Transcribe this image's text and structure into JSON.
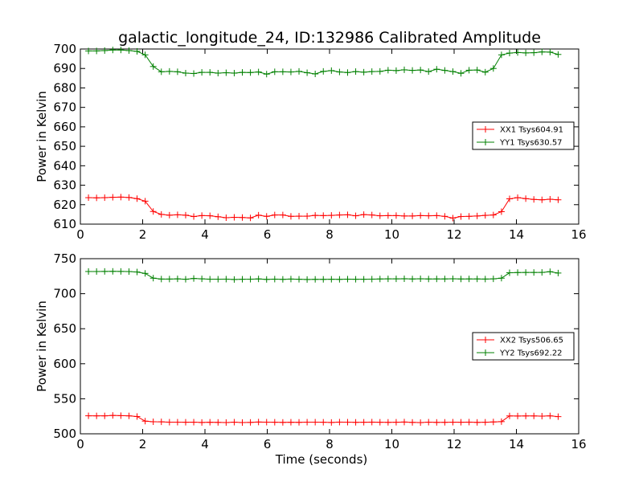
{
  "figure": {
    "title": "galactic_longitude_24, ID:132986 Calibrated Amplitude"
  },
  "colors": {
    "xx": "#ff0000",
    "yy": "#008000",
    "axes": "#000000",
    "background": "#ffffff"
  },
  "chart_data": [
    {
      "type": "line",
      "title": "galactic_longitude_24, ID:132986 Calibrated Amplitude",
      "xlabel": "",
      "ylabel": "Power in Kelvin",
      "xlim": [
        0,
        16
      ],
      "ylim": [
        610,
        700
      ],
      "xticks": [
        0,
        2,
        4,
        6,
        8,
        10,
        12,
        14,
        16
      ],
      "yticks": [
        610,
        620,
        630,
        640,
        650,
        660,
        670,
        680,
        690,
        700
      ],
      "xtick_labels": [
        "0",
        "2",
        "4",
        "6",
        "8",
        "10",
        "12",
        "14",
        "16"
      ],
      "ytick_labels": [
        "610",
        "620",
        "630",
        "640",
        "650",
        "660",
        "670",
        "680",
        "690",
        "700"
      ],
      "grid": false,
      "legend_position": "center-right",
      "marker": "plus",
      "x": [
        0.26,
        0.52,
        0.78,
        1.04,
        1.3,
        1.56,
        1.82,
        2.08,
        2.34,
        2.6,
        2.86,
        3.12,
        3.38,
        3.64,
        3.9,
        4.16,
        4.42,
        4.68,
        4.94,
        5.2,
        5.46,
        5.72,
        5.98,
        6.24,
        6.5,
        6.76,
        7.02,
        7.28,
        7.54,
        7.8,
        8.06,
        8.32,
        8.58,
        8.84,
        9.1,
        9.36,
        9.62,
        9.88,
        10.14,
        10.4,
        10.66,
        10.92,
        11.18,
        11.44,
        11.7,
        11.96,
        12.22,
        12.48,
        12.74,
        13.0,
        13.26,
        13.52,
        13.78,
        14.04,
        14.3,
        14.56,
        14.82,
        15.08,
        15.34
      ],
      "series": [
        {
          "name": "XX1 Tsys604.91",
          "color": "#ff0000",
          "values": [
            623.6,
            623.5,
            623.6,
            623.8,
            623.9,
            623.7,
            623.1,
            621.8,
            616.5,
            615.0,
            614.6,
            614.8,
            614.6,
            613.9,
            614.4,
            614.3,
            613.8,
            613.3,
            613.5,
            613.4,
            613.2,
            614.6,
            614.0,
            614.7,
            614.7,
            614.0,
            614.1,
            614.1,
            614.5,
            614.4,
            614.5,
            614.7,
            614.8,
            614.3,
            614.9,
            614.7,
            614.3,
            614.4,
            614.4,
            614.2,
            614.2,
            614.4,
            614.3,
            614.4,
            614.0,
            613.1,
            613.9,
            614.0,
            614.2,
            614.5,
            614.7,
            616.4,
            623.0,
            623.6,
            623.1,
            622.7,
            622.5,
            622.8,
            622.5
          ]
        },
        {
          "name": "YY1 Tsys630.57",
          "color": "#008000",
          "values": [
            699.0,
            699.0,
            699.2,
            699.5,
            699.5,
            699.2,
            698.8,
            697.0,
            691.0,
            688.3,
            688.5,
            688.3,
            687.6,
            687.4,
            688.0,
            688.0,
            687.6,
            687.8,
            687.6,
            688.0,
            687.9,
            688.2,
            687.1,
            688.3,
            688.3,
            688.2,
            688.5,
            687.8,
            687.2,
            688.5,
            688.9,
            688.2,
            687.9,
            688.4,
            688.1,
            688.4,
            688.5,
            689.1,
            688.9,
            689.3,
            689.0,
            689.2,
            688.4,
            689.6,
            689.0,
            688.4,
            687.5,
            689.1,
            689.2,
            688.1,
            690.0,
            697.0,
            697.9,
            698.2,
            698.0,
            698.1,
            698.5,
            698.4,
            697.2
          ]
        }
      ]
    },
    {
      "type": "line",
      "title": "",
      "xlabel": "Time (seconds)",
      "ylabel": "Power in Kelvin",
      "xlim": [
        0,
        16
      ],
      "ylim": [
        500,
        750
      ],
      "xticks": [
        0,
        2,
        4,
        6,
        8,
        10,
        12,
        14,
        16
      ],
      "yticks": [
        500,
        550,
        600,
        650,
        700,
        750
      ],
      "xtick_labels": [
        "0",
        "2",
        "4",
        "6",
        "8",
        "10",
        "12",
        "14",
        "16"
      ],
      "ytick_labels": [
        "500",
        "550",
        "600",
        "650",
        "700",
        "750"
      ],
      "grid": false,
      "legend_position": "center-right",
      "marker": "plus",
      "x": [
        0.26,
        0.52,
        0.78,
        1.04,
        1.3,
        1.56,
        1.82,
        2.08,
        2.34,
        2.6,
        2.86,
        3.12,
        3.38,
        3.64,
        3.9,
        4.16,
        4.42,
        4.68,
        4.94,
        5.2,
        5.46,
        5.72,
        5.98,
        6.24,
        6.5,
        6.76,
        7.02,
        7.28,
        7.54,
        7.8,
        8.06,
        8.32,
        8.58,
        8.84,
        9.1,
        9.36,
        9.62,
        9.88,
        10.14,
        10.4,
        10.66,
        10.92,
        11.18,
        11.44,
        11.7,
        11.96,
        12.22,
        12.48,
        12.74,
        13.0,
        13.26,
        13.52,
        13.78,
        14.04,
        14.3,
        14.56,
        14.82,
        15.08,
        15.34
      ],
      "series": [
        {
          "name": "XX2 Tsys506.65",
          "color": "#ff0000",
          "values": [
            525.7,
            525.6,
            525.6,
            526.2,
            525.9,
            525.6,
            524.7,
            518.1,
            517.2,
            517.1,
            516.6,
            516.6,
            516.5,
            516.6,
            516.2,
            516.5,
            516.3,
            516.1,
            516.6,
            516.1,
            516.3,
            516.8,
            516.6,
            516.5,
            516.3,
            516.5,
            516.4,
            516.6,
            516.6,
            516.5,
            516.2,
            516.7,
            516.6,
            516.4,
            516.5,
            516.7,
            516.5,
            516.4,
            516.5,
            516.8,
            516.3,
            516.0,
            516.6,
            516.3,
            516.4,
            516.6,
            516.5,
            516.7,
            516.3,
            516.5,
            516.9,
            517.4,
            525.5,
            525.4,
            525.5,
            525.5,
            525.2,
            525.6,
            524.5
          ]
        },
        {
          "name": "YY2 Tsys692.22",
          "color": "#008000",
          "values": [
            731.7,
            731.7,
            731.8,
            731.9,
            731.8,
            731.6,
            731.0,
            729.0,
            722.2,
            720.9,
            720.9,
            721.2,
            720.6,
            721.7,
            721.2,
            720.7,
            720.7,
            720.8,
            720.3,
            720.6,
            720.7,
            721.1,
            720.4,
            720.8,
            720.5,
            720.9,
            720.6,
            720.3,
            720.5,
            720.5,
            720.6,
            720.5,
            720.8,
            720.6,
            720.6,
            720.8,
            721.0,
            721.2,
            721.2,
            721.4,
            721.0,
            721.3,
            721.0,
            721.1,
            721.1,
            721.3,
            721.0,
            721.1,
            721.1,
            720.9,
            721.2,
            722.2,
            729.9,
            730.2,
            730.3,
            730.3,
            730.4,
            731.4,
            729.5
          ]
        }
      ]
    }
  ]
}
